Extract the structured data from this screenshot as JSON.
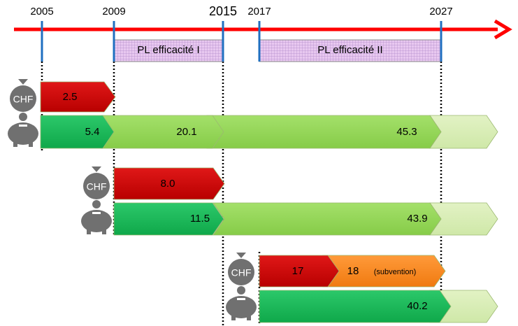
{
  "timeline": {
    "years": [
      "2005",
      "2009",
      "2015",
      "2017",
      "2027"
    ],
    "phases": [
      "PL efficacité I",
      "PL efficacité II"
    ]
  },
  "rows": [
    {
      "icon": "CHF",
      "cost": [
        "2.5"
      ],
      "savings": [
        "5.4",
        "20.1",
        "45.3"
      ]
    },
    {
      "icon": "CHF",
      "cost": [
        "8.0"
      ],
      "savings": [
        "11.5",
        "43.9"
      ]
    },
    {
      "icon": "CHF",
      "cost": [
        "17",
        "18"
      ],
      "subsidy": "(subvention)",
      "savings": [
        "40.2"
      ]
    }
  ]
}
